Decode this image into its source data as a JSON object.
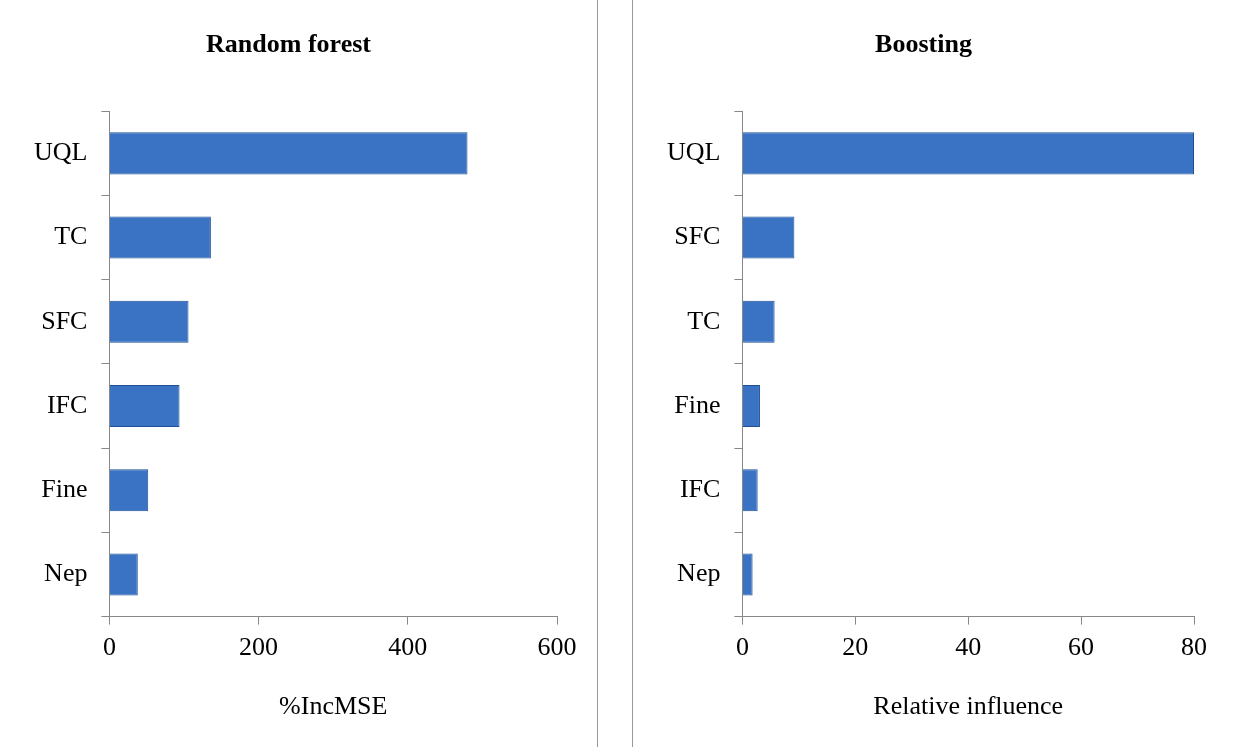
{
  "chart_data": [
    {
      "type": "bar",
      "orientation": "horizontal",
      "title": "Random forest",
      "xlabel": "%IncMSE",
      "categories": [
        "UQL",
        "TC",
        "SFC",
        "IFC",
        "Fine",
        "Nep"
      ],
      "values": [
        480,
        136,
        106,
        94,
        52,
        38
      ],
      "color": "#3a72c4",
      "xlim": [
        0,
        600
      ],
      "xticks": [
        0,
        200,
        400,
        600
      ],
      "grid": false,
      "legend": false
    },
    {
      "type": "bar",
      "orientation": "horizontal",
      "title": "Boosting",
      "xlabel": "Relative influence",
      "categories": [
        "UQL",
        "SFC",
        "TC",
        "Fine",
        "IFC",
        "Nep"
      ],
      "values": [
        80,
        9.2,
        5.7,
        3.1,
        2.7,
        1.8
      ],
      "color": "#3a72c4",
      "xlim": [
        0,
        80
      ],
      "xticks": [
        0,
        20,
        40,
        60,
        80
      ],
      "grid": false,
      "legend": false
    }
  ]
}
